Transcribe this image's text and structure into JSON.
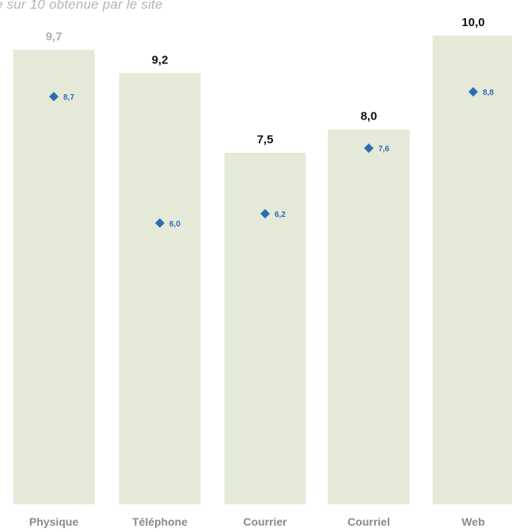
{
  "chart_data": {
    "type": "bar",
    "title": "e sur 10 obtenue par le site",
    "categories": [
      "Physique",
      "Téléphone",
      "Courrier",
      "Courriel",
      "Web"
    ],
    "series": [
      {
        "values": [
          9.7,
          9.2,
          7.5,
          8.0,
          10.0
        ],
        "labels": [
          "9,7",
          "9,2",
          "7,5",
          "8,0",
          "10,0"
        ],
        "color": "#e4ead7"
      },
      {
        "values": [
          8.7,
          6.0,
          6.2,
          7.6,
          8.8
        ],
        "labels": [
          "8,7",
          "6,0",
          "6,2",
          "7,6",
          "8,8"
        ],
        "color": "#2d6cb3",
        "marker": "diamond"
      }
    ],
    "ylim": [
      0,
      10
    ],
    "grid": false,
    "colors": {
      "bar_fill": "#e4ead7",
      "highlight_label": "#b0b0b0",
      "label": "#111111",
      "marker": "#2d6cb3",
      "category_label": "#8a8a8a"
    }
  }
}
